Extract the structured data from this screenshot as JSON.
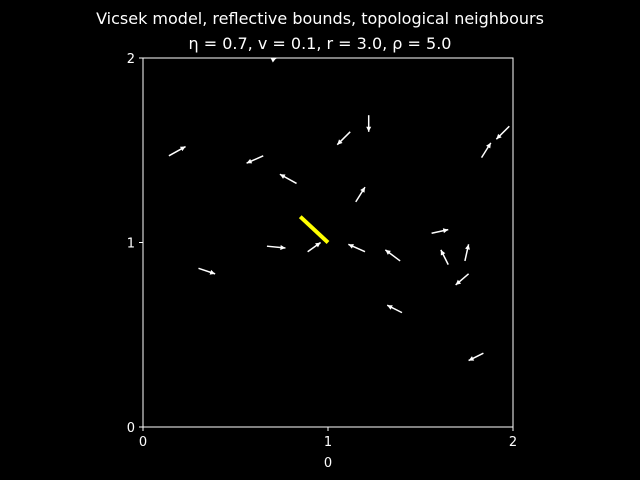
{
  "chart_data": {
    "type": "quiver",
    "title": "Vicsek model, reflective bounds, topological neighbours",
    "subtitle": {
      "eta_label": "η = 0.7",
      "v_label": "v = 0.1",
      "r_label": "r = 3.0",
      "rho_label": "ρ = 5.0"
    },
    "xlabel": "0",
    "ylabel": "",
    "xlim": [
      0,
      2
    ],
    "ylim": [
      0,
      2
    ],
    "x_ticks": [
      0,
      1,
      2
    ],
    "y_ticks": [
      0,
      1,
      2
    ],
    "x_tick_labels": [
      "0",
      "1",
      "2"
    ],
    "y_tick_labels": [
      "0",
      "1",
      "2"
    ],
    "grid": false,
    "colors": {
      "background": "#000000",
      "arrows": "#ffffff",
      "highlight": "#ffff00",
      "axes": "#ffffff"
    },
    "highlight": {
      "x": 1.0,
      "y": 1.0,
      "x2": 0.85,
      "y2": 1.14
    },
    "arrows": [
      {
        "x": 0.14,
        "y": 1.47,
        "x2": 0.23,
        "y2": 1.52
      },
      {
        "x": 0.65,
        "y": 1.47,
        "x2": 0.56,
        "y2": 1.43
      },
      {
        "x": 0.83,
        "y": 1.32,
        "x2": 0.74,
        "y2": 1.37
      },
      {
        "x": 1.12,
        "y": 1.6,
        "x2": 1.05,
        "y2": 1.53
      },
      {
        "x": 1.22,
        "y": 1.69,
        "x2": 1.22,
        "y2": 1.6
      },
      {
        "x": 1.15,
        "y": 1.22,
        "x2": 1.2,
        "y2": 1.3
      },
      {
        "x": 1.83,
        "y": 1.46,
        "x2": 1.88,
        "y2": 1.54
      },
      {
        "x": 1.98,
        "y": 1.63,
        "x2": 1.91,
        "y2": 1.56
      },
      {
        "x": 0.67,
        "y": 0.98,
        "x2": 0.77,
        "y2": 0.97
      },
      {
        "x": 0.89,
        "y": 0.95,
        "x2": 0.96,
        "y2": 1.0
      },
      {
        "x": 1.2,
        "y": 0.95,
        "x2": 1.11,
        "y2": 0.99
      },
      {
        "x": 1.39,
        "y": 0.9,
        "x2": 1.31,
        "y2": 0.96
      },
      {
        "x": 1.56,
        "y": 1.05,
        "x2": 1.65,
        "y2": 1.07
      },
      {
        "x": 1.65,
        "y": 0.88,
        "x2": 1.61,
        "y2": 0.96
      },
      {
        "x": 1.74,
        "y": 0.9,
        "x2": 1.76,
        "y2": 0.99
      },
      {
        "x": 1.76,
        "y": 0.83,
        "x2": 1.69,
        "y2": 0.77
      },
      {
        "x": 0.3,
        "y": 0.86,
        "x2": 0.39,
        "y2": 0.83
      },
      {
        "x": 1.4,
        "y": 0.62,
        "x2": 1.32,
        "y2": 0.66
      },
      {
        "x": 1.84,
        "y": 0.4,
        "x2": 1.76,
        "y2": 0.36
      },
      {
        "x": 0.7,
        "y": 1.99,
        "x2": 0.72,
        "y2": 2.0
      }
    ]
  }
}
